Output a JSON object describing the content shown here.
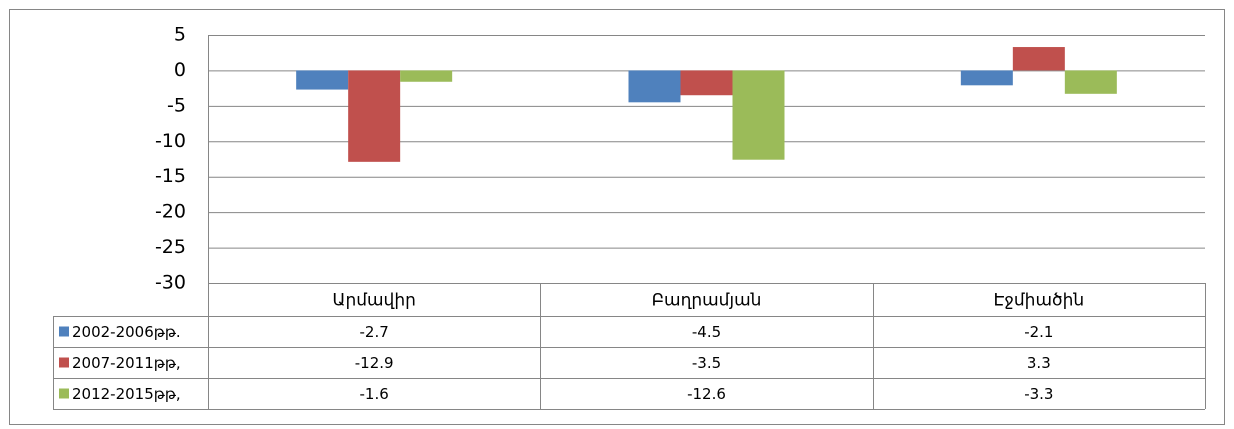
{
  "chart_data": {
    "type": "bar",
    "categories": [
      "Արմավիր",
      "Բաղրամյան",
      "Էջմիածին"
    ],
    "series": [
      {
        "name": "2002-2006թթ.",
        "color": "#4f81bd",
        "values": [
          -2.7,
          -4.5,
          -2.1
        ]
      },
      {
        "name": "2007-2011թթ,",
        "color": "#c0504d",
        "values": [
          -12.9,
          -3.5,
          3.3
        ]
      },
      {
        "name": "2012-2015թթ,",
        "color": "#9bbb59",
        "values": [
          -1.6,
          -12.6,
          -3.3
        ]
      }
    ],
    "ylim": [
      -30,
      5
    ],
    "yticks": [
      5,
      0,
      -5,
      -10,
      -15,
      -20,
      -25,
      -30
    ],
    "grid": true
  }
}
